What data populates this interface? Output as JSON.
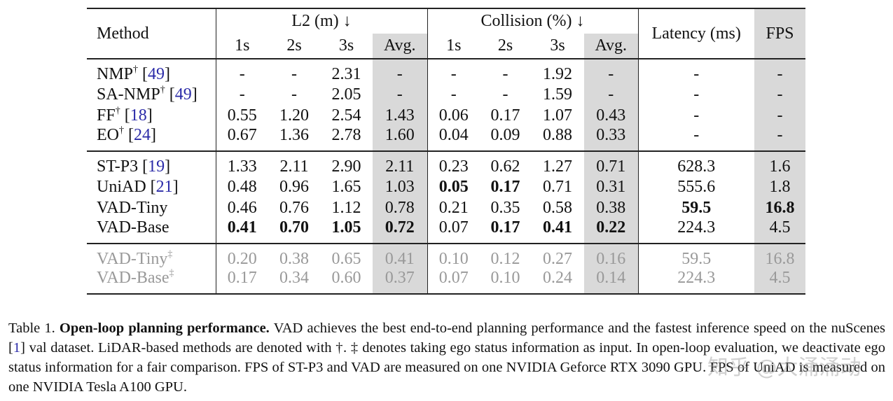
{
  "header": {
    "method": "Method",
    "l2_group": "L2 (m) ↓",
    "collision_group": "Collision (%) ↓",
    "latency": "Latency (ms)",
    "fps": "FPS",
    "sub": [
      "1s",
      "2s",
      "3s",
      "Avg."
    ]
  },
  "groups": [
    {
      "style": "normal",
      "rows": [
        {
          "name": "NMP",
          "mark": "†",
          "ref": "49",
          "l2": [
            "-",
            "-",
            "2.31",
            "-"
          ],
          "col": [
            "-",
            "-",
            "1.92",
            "-"
          ],
          "latency": "-",
          "fps": "-",
          "bold": []
        },
        {
          "name": "SA-NMP",
          "mark": "†",
          "ref": "49",
          "l2": [
            "-",
            "-",
            "2.05",
            "-"
          ],
          "col": [
            "-",
            "-",
            "1.59",
            "-"
          ],
          "latency": "-",
          "fps": "-",
          "bold": []
        },
        {
          "name": "FF",
          "mark": "†",
          "ref": "18",
          "l2": [
            "0.55",
            "1.20",
            "2.54",
            "1.43"
          ],
          "col": [
            "0.06",
            "0.17",
            "1.07",
            "0.43"
          ],
          "latency": "-",
          "fps": "-",
          "bold": []
        },
        {
          "name": "EO",
          "mark": "†",
          "ref": "24",
          "l2": [
            "0.67",
            "1.36",
            "2.78",
            "1.60"
          ],
          "col": [
            "0.04",
            "0.09",
            "0.88",
            "0.33"
          ],
          "latency": "-",
          "fps": "-",
          "bold": []
        }
      ]
    },
    {
      "style": "normal",
      "rows": [
        {
          "name": "ST-P3",
          "mark": "",
          "ref": "19",
          "l2": [
            "1.33",
            "2.11",
            "2.90",
            "2.11"
          ],
          "col": [
            "0.23",
            "0.62",
            "1.27",
            "0.71"
          ],
          "latency": "628.3",
          "fps": "1.6",
          "bold": []
        },
        {
          "name": "UniAD",
          "mark": "",
          "ref": "21",
          "l2": [
            "0.48",
            "0.96",
            "1.65",
            "1.03"
          ],
          "col": [
            "0.05",
            "0.17",
            "0.71",
            "0.31"
          ],
          "latency": "555.6",
          "fps": "1.8",
          "bold": [
            "col0",
            "col1"
          ]
        },
        {
          "name": "VAD-Tiny",
          "mark": "",
          "ref": "",
          "l2": [
            "0.46",
            "0.76",
            "1.12",
            "0.78"
          ],
          "col": [
            "0.21",
            "0.35",
            "0.58",
            "0.38"
          ],
          "latency": "59.5",
          "fps": "16.8",
          "bold": [
            "latency",
            "fps"
          ]
        },
        {
          "name": "VAD-Base",
          "mark": "",
          "ref": "",
          "l2": [
            "0.41",
            "0.70",
            "1.05",
            "0.72"
          ],
          "col": [
            "0.07",
            "0.17",
            "0.41",
            "0.22"
          ],
          "latency": "224.3",
          "fps": "4.5",
          "bold": [
            "l20",
            "l21",
            "l22",
            "l23",
            "col1",
            "col2",
            "col3"
          ]
        }
      ]
    },
    {
      "style": "gray",
      "rows": [
        {
          "name": "VAD-Tiny",
          "mark": "‡",
          "ref": "",
          "l2": [
            "0.20",
            "0.38",
            "0.65",
            "0.41"
          ],
          "col": [
            "0.10",
            "0.12",
            "0.27",
            "0.16"
          ],
          "latency": "59.5",
          "fps": "16.8",
          "bold": []
        },
        {
          "name": "VAD-Base",
          "mark": "‡",
          "ref": "",
          "l2": [
            "0.17",
            "0.34",
            "0.60",
            "0.37"
          ],
          "col": [
            "0.07",
            "0.10",
            "0.24",
            "0.14"
          ],
          "latency": "224.3",
          "fps": "4.5",
          "bold": []
        }
      ]
    }
  ],
  "caption": {
    "label": "Table 1.",
    "title": "Open-loop planning performance.",
    "text1": " VAD achieves the best end-to-end planning performance and the fastest inference speed on the nuScenes [",
    "ref": "1",
    "text2": "] val dataset. LiDAR-based methods are denoted with †. ‡ denotes taking ego status information as input. In open-loop evaluation, we deactivate ego status information for a fair comparison. FPS of ST-P3 and VAD are measured on one NVIDIA Geforce RTX 3090 GPU. FPS of UniAD is measured on one NVIDIA Tesla A100 GPU."
  },
  "watermark": "知乎 @大涌涌动",
  "colors": {
    "shade": "#d9d9d9",
    "citation": "#2a2aa8",
    "gray_text": "#999999"
  }
}
